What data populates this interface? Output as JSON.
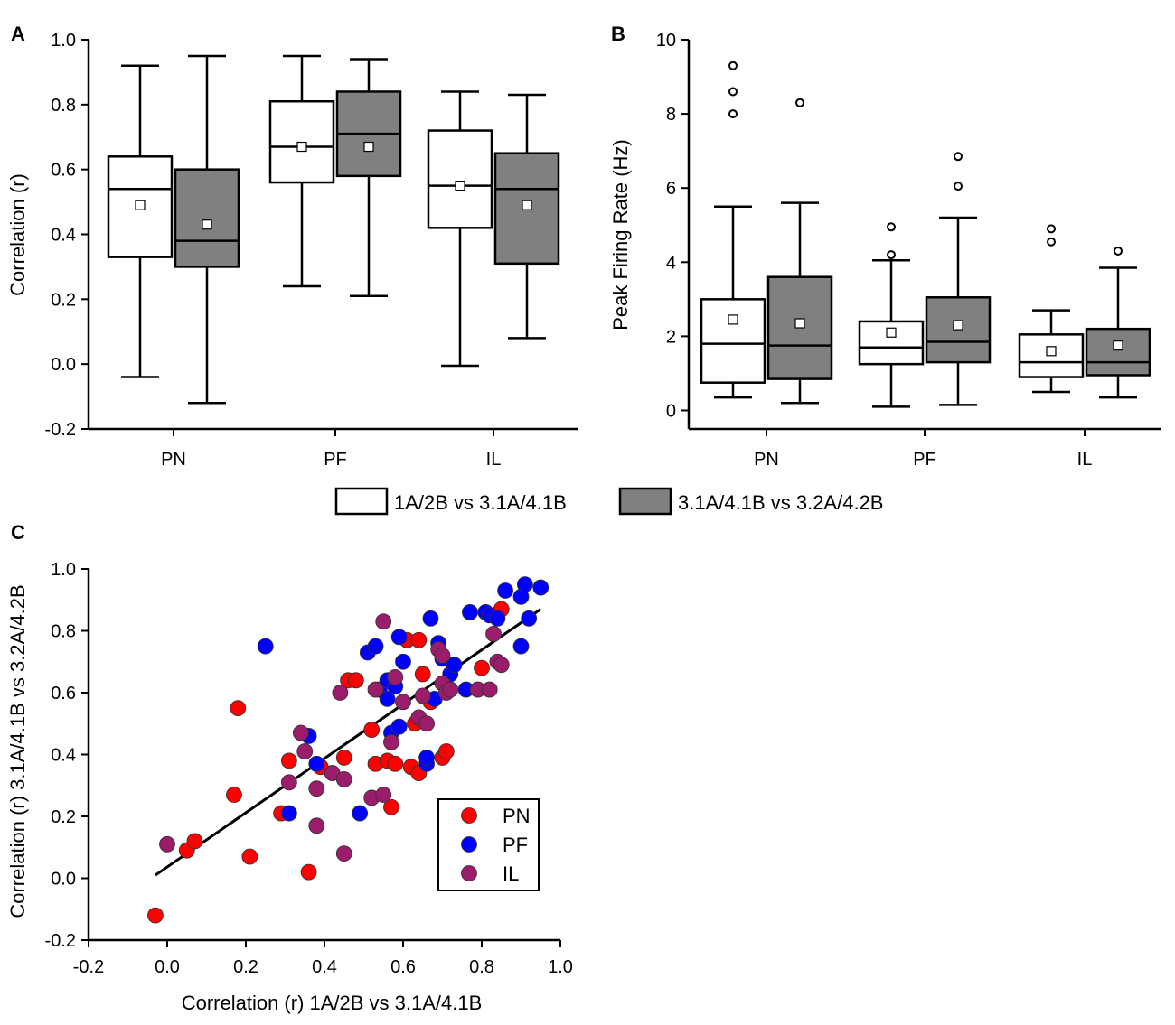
{
  "colors": {
    "box_white": "#ffffff",
    "box_gray": "#808080",
    "PN": "#ff0000",
    "PF": "#0000ff",
    "IL": "#9b1c6a"
  },
  "legend": {
    "series_1": "1A/2B vs 3.1A/4.1B",
    "series_2": "3.1A/4.1B vs 3.2A/4.2B"
  },
  "chart_data": [
    {
      "panel": "A",
      "type": "box",
      "ylabel": "Correlation (r)",
      "ylim": [
        -0.2,
        1.0
      ],
      "yticks": [
        "-0.2",
        "0.0",
        "0.2",
        "0.4",
        "0.6",
        "0.8",
        "1.0"
      ],
      "categories": [
        "PN",
        "PF",
        "IL"
      ],
      "series": [
        {
          "name": "1A/2B vs 3.1A/4.1B",
          "fill": "white",
          "boxes": [
            {
              "min": -0.04,
              "q1": 0.33,
              "median": 0.54,
              "q3": 0.64,
              "max": 0.92,
              "mean": 0.49,
              "outliers": []
            },
            {
              "min": 0.24,
              "q1": 0.56,
              "median": 0.67,
              "q3": 0.81,
              "max": 0.95,
              "mean": 0.67,
              "outliers": []
            },
            {
              "min": -0.005,
              "q1": 0.42,
              "median": 0.55,
              "q3": 0.72,
              "max": 0.84,
              "mean": 0.55,
              "outliers": []
            }
          ]
        },
        {
          "name": "3.1A/4.1B vs 3.2A/4.2B",
          "fill": "gray",
          "boxes": [
            {
              "min": -0.12,
              "q1": 0.3,
              "median": 0.38,
              "q3": 0.6,
              "max": 0.95,
              "mean": 0.43,
              "outliers": []
            },
            {
              "min": 0.21,
              "q1": 0.58,
              "median": 0.71,
              "q3": 0.84,
              "max": 0.94,
              "mean": 0.67,
              "outliers": []
            },
            {
              "min": 0.08,
              "q1": 0.31,
              "median": 0.54,
              "q3": 0.65,
              "max": 0.83,
              "mean": 0.49,
              "outliers": []
            }
          ]
        }
      ]
    },
    {
      "panel": "B",
      "type": "box",
      "ylabel": "Peak Firing Rate (Hz)",
      "ylim": [
        -0.5,
        10
      ],
      "yticks": [
        "0",
        "2",
        "4",
        "6",
        "8",
        "10"
      ],
      "categories": [
        "PN",
        "PF",
        "IL"
      ],
      "series": [
        {
          "name": "1A/2B vs 3.1A/4.1B",
          "fill": "white",
          "boxes": [
            {
              "min": 0.35,
              "q1": 0.75,
              "median": 1.8,
              "q3": 3.0,
              "max": 5.5,
              "mean": 2.45,
              "outliers": [
                8.0,
                8.6,
                9.3
              ]
            },
            {
              "min": 0.1,
              "q1": 1.25,
              "median": 1.7,
              "q3": 2.4,
              "max": 4.05,
              "mean": 2.1,
              "outliers": [
                4.2,
                4.95
              ]
            },
            {
              "min": 0.5,
              "q1": 0.9,
              "median": 1.3,
              "q3": 2.05,
              "max": 2.7,
              "mean": 1.6,
              "outliers": [
                4.55,
                4.9
              ]
            }
          ]
        },
        {
          "name": "3.1A/4.1B vs 3.2A/4.2B",
          "fill": "gray",
          "boxes": [
            {
              "min": 0.2,
              "q1": 0.85,
              "median": 1.75,
              "q3": 3.6,
              "max": 5.6,
              "mean": 2.35,
              "outliers": [
                8.3
              ]
            },
            {
              "min": 0.15,
              "q1": 1.3,
              "median": 1.85,
              "q3": 3.05,
              "max": 5.2,
              "mean": 2.3,
              "outliers": [
                6.05,
                6.85
              ]
            },
            {
              "min": 0.35,
              "q1": 0.95,
              "median": 1.3,
              "q3": 2.2,
              "max": 3.85,
              "mean": 1.75,
              "outliers": [
                4.3
              ]
            }
          ]
        }
      ]
    },
    {
      "panel": "C",
      "type": "scatter",
      "xlabel": "Correlation (r) 1A/2B vs 3.1A/4.1B",
      "ylabel": "Correlation (r) 3.1A/4.1B vs 3.2A/4.2B",
      "xlim": [
        -0.2,
        1.0
      ],
      "ylim": [
        -0.2,
        1.0
      ],
      "xticks": [
        "-0.2",
        "0.0",
        "0.2",
        "0.4",
        "0.6",
        "0.8",
        "1.0"
      ],
      "yticks": [
        "-0.2",
        "0.0",
        "0.2",
        "0.4",
        "0.6",
        "0.8",
        "1.0"
      ],
      "fit_line": {
        "x": [
          -0.03,
          0.95
        ],
        "y": [
          0.01,
          0.87
        ]
      },
      "series": [
        {
          "name": "PN",
          "color": "#ff0000",
          "points": [
            [
              -0.03,
              -0.12
            ],
            [
              0.05,
              0.09
            ],
            [
              0.07,
              0.12
            ],
            [
              0.17,
              0.27
            ],
            [
              0.18,
              0.55
            ],
            [
              0.21,
              0.07
            ],
            [
              0.29,
              0.21
            ],
            [
              0.31,
              0.38
            ],
            [
              0.36,
              0.02
            ],
            [
              0.39,
              0.36
            ],
            [
              0.45,
              0.39
            ],
            [
              0.46,
              0.64
            ],
            [
              0.48,
              0.64
            ],
            [
              0.52,
              0.48
            ],
            [
              0.53,
              0.37
            ],
            [
              0.56,
              0.38
            ],
            [
              0.57,
              0.23
            ],
            [
              0.58,
              0.37
            ],
            [
              0.61,
              0.77
            ],
            [
              0.62,
              0.36
            ],
            [
              0.63,
              0.5
            ],
            [
              0.64,
              0.34
            ],
            [
              0.64,
              0.77
            ],
            [
              0.65,
              0.66
            ],
            [
              0.67,
              0.57
            ],
            [
              0.7,
              0.39
            ],
            [
              0.71,
              0.41
            ],
            [
              0.8,
              0.68
            ],
            [
              0.83,
              0.85
            ],
            [
              0.85,
              0.87
            ]
          ]
        },
        {
          "name": "PF",
          "color": "#0000ff",
          "points": [
            [
              0.25,
              0.75
            ],
            [
              0.31,
              0.21
            ],
            [
              0.36,
              0.46
            ],
            [
              0.38,
              0.37
            ],
            [
              0.49,
              0.21
            ],
            [
              0.51,
              0.73
            ],
            [
              0.53,
              0.75
            ],
            [
              0.54,
              0.61
            ],
            [
              0.56,
              0.58
            ],
            [
              0.56,
              0.64
            ],
            [
              0.57,
              0.47
            ],
            [
              0.58,
              0.62
            ],
            [
              0.59,
              0.78
            ],
            [
              0.59,
              0.49
            ],
            [
              0.6,
              0.7
            ],
            [
              0.66,
              0.37
            ],
            [
              0.66,
              0.39
            ],
            [
              0.67,
              0.84
            ],
            [
              0.68,
              0.58
            ],
            [
              0.69,
              0.76
            ],
            [
              0.7,
              0.71
            ],
            [
              0.71,
              0.62
            ],
            [
              0.72,
              0.66
            ],
            [
              0.73,
              0.69
            ],
            [
              0.76,
              0.61
            ],
            [
              0.77,
              0.86
            ],
            [
              0.81,
              0.86
            ],
            [
              0.82,
              0.85
            ],
            [
              0.84,
              0.84
            ],
            [
              0.86,
              0.93
            ],
            [
              0.9,
              0.75
            ],
            [
              0.9,
              0.91
            ],
            [
              0.91,
              0.95
            ],
            [
              0.92,
              0.84
            ],
            [
              0.95,
              0.94
            ]
          ]
        },
        {
          "name": "IL",
          "color": "#9b1c6a",
          "points": [
            [
              0.0,
              0.11
            ],
            [
              0.31,
              0.31
            ],
            [
              0.34,
              0.47
            ],
            [
              0.35,
              0.41
            ],
            [
              0.38,
              0.17
            ],
            [
              0.38,
              0.29
            ],
            [
              0.42,
              0.34
            ],
            [
              0.44,
              0.6
            ],
            [
              0.45,
              0.08
            ],
            [
              0.45,
              0.32
            ],
            [
              0.52,
              0.26
            ],
            [
              0.53,
              0.61
            ],
            [
              0.55,
              0.27
            ],
            [
              0.55,
              0.83
            ],
            [
              0.57,
              0.44
            ],
            [
              0.58,
              0.65
            ],
            [
              0.6,
              0.57
            ],
            [
              0.64,
              0.52
            ],
            [
              0.65,
              0.59
            ],
            [
              0.66,
              0.5
            ],
            [
              0.69,
              0.74
            ],
            [
              0.7,
              0.63
            ],
            [
              0.7,
              0.72
            ],
            [
              0.71,
              0.6
            ],
            [
              0.72,
              0.61
            ],
            [
              0.79,
              0.61
            ],
            [
              0.82,
              0.61
            ],
            [
              0.83,
              0.79
            ],
            [
              0.84,
              0.7
            ],
            [
              0.85,
              0.69
            ]
          ]
        }
      ],
      "legend": [
        "PN",
        "PF",
        "IL"
      ]
    }
  ]
}
